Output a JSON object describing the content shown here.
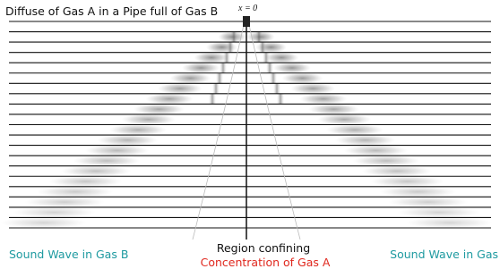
{
  "title": "Diffuse of Gas A in a Pipe full of Gas B",
  "origin_label": "x = 0",
  "labels": {
    "left": "Sound Wave in Gas B",
    "center_top": "Region confining",
    "center_bottom": "Concentration of Gas A",
    "right": "Sound Wave in Gas"
  }
}
